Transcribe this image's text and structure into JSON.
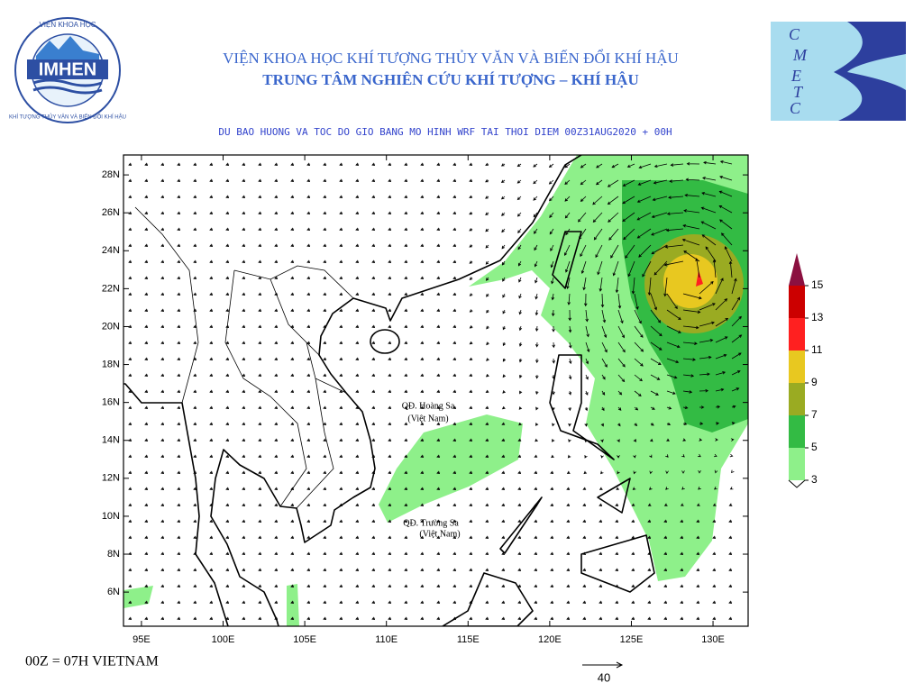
{
  "header": {
    "institute": "VIỆN KHOA HỌC KHÍ TƯỢNG THỦY VĂN VÀ BIẾN ĐỔI KHÍ HẬU",
    "center": "TRUNG TÂM NGHIÊN CỨU KHÍ TƯỢNG – KHÍ HẬU",
    "subtitle": "DU BAO HUONG VA TOC DO GIO BANG MO HINH WRF TAI THOI DIEM  00Z31AUG2020 + 00H"
  },
  "logos": {
    "imhen_acronym": "IMHEN",
    "imhen_top": "VIỆN KHOA HỌC",
    "imhen_ring": "KHÍ TƯỢNG THỦY VĂN VÀ BIẾN ĐỔI KHÍ HẬU",
    "cmetc_letters": [
      "C",
      "M",
      "E",
      "T",
      "C"
    ]
  },
  "map": {
    "lonlim": [
      93.9,
      132.15
    ],
    "latlim": [
      4.2,
      29.05
    ],
    "lon_ticks": [
      {
        "value": 95,
        "label": "95E"
      },
      {
        "value": 100,
        "label": "100E"
      },
      {
        "value": 105,
        "label": "105E"
      },
      {
        "value": 110,
        "label": "110E"
      },
      {
        "value": 115,
        "label": "115E"
      },
      {
        "value": 120,
        "label": "120E"
      },
      {
        "value": 125,
        "label": "125E"
      },
      {
        "value": 130,
        "label": "130E"
      }
    ],
    "lat_ticks": [
      {
        "value": 6,
        "label": "6N"
      },
      {
        "value": 8,
        "label": "8N"
      },
      {
        "value": 10,
        "label": "10N"
      },
      {
        "value": 12,
        "label": "12N"
      },
      {
        "value": 14,
        "label": "14N"
      },
      {
        "value": 16,
        "label": "16N"
      },
      {
        "value": 18,
        "label": "18N"
      },
      {
        "value": 20,
        "label": "20N"
      },
      {
        "value": 22,
        "label": "22N"
      },
      {
        "value": 24,
        "label": "24N"
      },
      {
        "value": 26,
        "label": "26N"
      },
      {
        "value": 28,
        "label": "28N"
      }
    ],
    "annotations": [
      "QĐ. Hoàng Sa",
      "(Việt Nam)",
      "QĐ. Trường Sa",
      "(Việt Nam)"
    ]
  },
  "colorbar": {
    "levels": [
      3,
      5,
      7,
      9,
      11,
      13,
      15
    ],
    "colors": [
      "#8ef08a",
      "#33bb44",
      "#9aab22",
      "#e8c820",
      "#ff2020",
      "#cc0000",
      "#8b1040"
    ]
  },
  "footer": {
    "time_note": "00Z = 07H VIETNAM",
    "reference_vector": "40"
  }
}
